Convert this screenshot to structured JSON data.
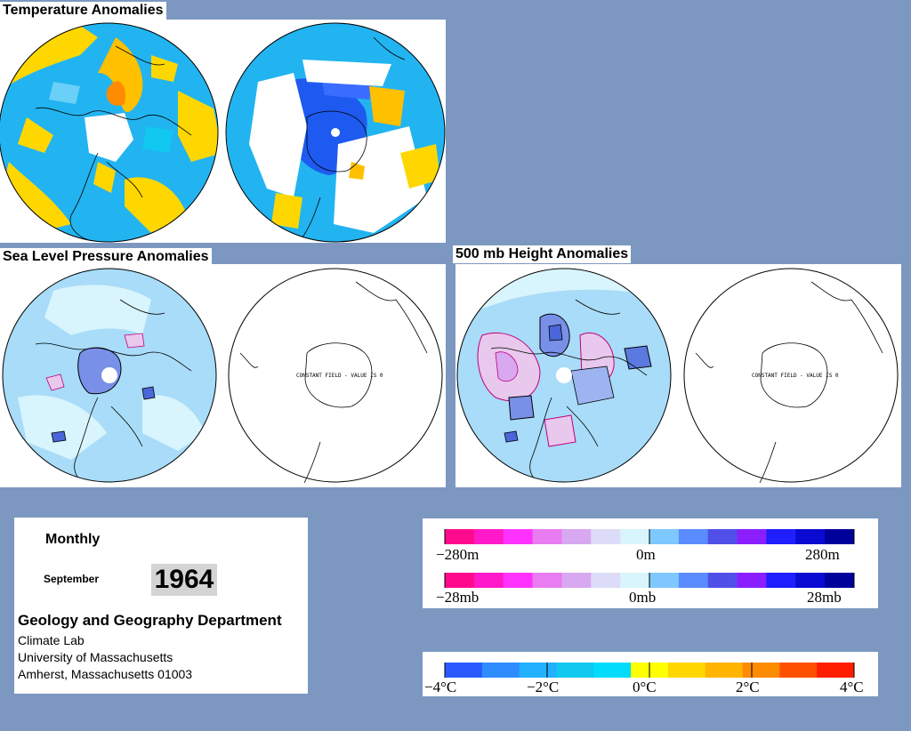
{
  "titles": {
    "temperature": "Temperature Anomalies",
    "slp": "Sea Level Pressure Anomalies",
    "height": "500 mb Height Anomalies"
  },
  "maps": {
    "constant_field_note": "CONSTANT FIELD - VALUE IS 0"
  },
  "info": {
    "period": "Monthly",
    "month": "September",
    "year": "1964",
    "department": "Geology and Geography Department",
    "address_lines": [
      "Climate Lab",
      "University of Massachusetts",
      "Amherst, Massachusetts 01003"
    ]
  },
  "legends": {
    "height": {
      "labels": [
        "−280m",
        "0m",
        "280m"
      ]
    },
    "pressure": {
      "labels": [
        "−28mb",
        "0mb",
        "28mb"
      ]
    },
    "temperature": {
      "labels": [
        "−4°C",
        "−2°C",
        "0°C",
        "2°C",
        "4°C"
      ]
    },
    "anomaly_colors": [
      "#ff0a8c",
      "#ff19c8",
      "#ff32ff",
      "#e87cf0",
      "#d8a8f0",
      "#dcdcf8",
      "#d8f4fc",
      "#7ec8ff",
      "#5a8cff",
      "#5050e8",
      "#8a1eff",
      "#1e1eff",
      "#0a0ad2",
      "#00009a"
    ],
    "temperature_colors": [
      "#2a5aff",
      "#2e8cff",
      "#22b0ff",
      "#10c8f0",
      "#00dcfa",
      "#ffff00",
      "#ffd700",
      "#ffb400",
      "#ff8c00",
      "#ff5000",
      "#ff1e00"
    ]
  }
}
